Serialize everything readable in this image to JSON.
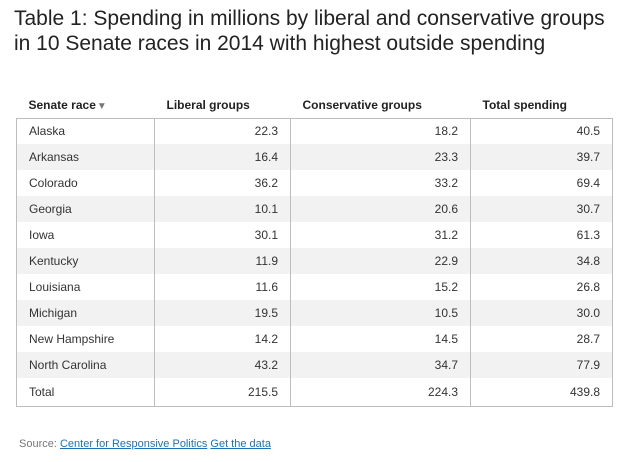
{
  "title": "Table 1: Spending in millions by liberal and conservative groups in 10 Senate races in 2014 with highest outside spending",
  "sort_indicator": "▼",
  "source": {
    "label": "Source:",
    "link1": "Center for Responsive Politics",
    "link2": "Get the data"
  },
  "chart_data": {
    "type": "table",
    "title": "Table 1: Spending in millions by liberal and conservative groups in 10 Senate races in 2014 with highest outside spending",
    "columns": [
      "Senate race",
      "Liberal groups",
      "Conservative groups",
      "Total spending"
    ],
    "rows": [
      [
        "Alaska",
        "22.3",
        "18.2",
        "40.5"
      ],
      [
        "Arkansas",
        "16.4",
        "23.3",
        "39.7"
      ],
      [
        "Colorado",
        "36.2",
        "33.2",
        "69.4"
      ],
      [
        "Georgia",
        "10.1",
        "20.6",
        "30.7"
      ],
      [
        "Iowa",
        "30.1",
        "31.2",
        "61.3"
      ],
      [
        "Kentucky",
        "11.9",
        "22.9",
        "34.8"
      ],
      [
        "Louisiana",
        "11.6",
        "15.2",
        "26.8"
      ],
      [
        "Michigan",
        "19.5",
        "10.5",
        "30.0"
      ],
      [
        "New Hampshire",
        "14.2",
        "14.5",
        "28.7"
      ],
      [
        "North Carolina",
        "43.2",
        "34.7",
        "77.9"
      ],
      [
        "Total",
        "215.5",
        "224.3",
        "439.8"
      ]
    ]
  }
}
